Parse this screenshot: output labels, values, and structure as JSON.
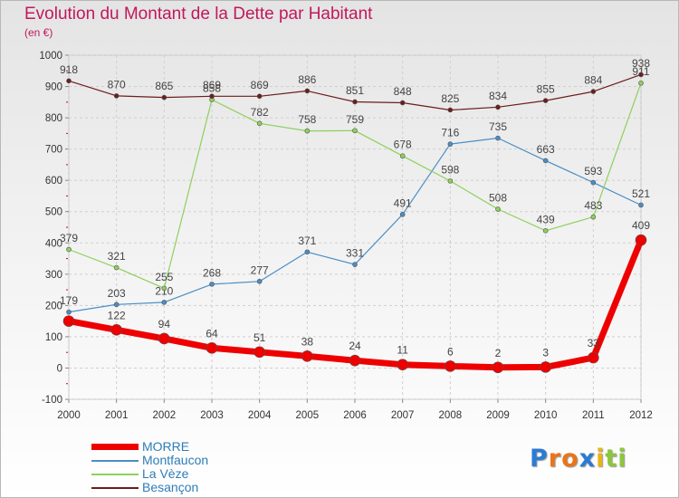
{
  "title": "Evolution du Montant de la Dette par Habitant",
  "unit": "(en €)",
  "logo": {
    "letters": [
      "P",
      "r",
      "o",
      "x",
      "i",
      "t",
      "i"
    ],
    "colors": [
      "#2b7bd4",
      "#e8751a",
      "#e8751a",
      "#2b7bd4",
      "#e8b218",
      "#8cc63f",
      "#8cc63f"
    ]
  },
  "chart_data": {
    "type": "line",
    "title": "Evolution du Montant de la Dette par Habitant",
    "ylabel": "(en €)",
    "x": [
      "2000",
      "2001",
      "2002",
      "2003",
      "2004",
      "2005",
      "2006",
      "2007",
      "2008",
      "2009",
      "2010",
      "2011",
      "2012"
    ],
    "ylim": [
      -100,
      1000
    ],
    "yticks": [
      "-100",
      "0",
      "100",
      "200",
      "300",
      "400",
      "500",
      "600",
      "700",
      "800",
      "900",
      "1000"
    ],
    "grid": "horizontal and vertical, dashed",
    "legend_position": "bottom-left",
    "series": [
      {
        "name": "Montfaucon",
        "color": "#4a8ec6",
        "width": 1.2,
        "marker": 5,
        "values": [
          179,
          203,
          210,
          268,
          277,
          371,
          331,
          491,
          716,
          735,
          663,
          593,
          521
        ],
        "labels": [
          "179",
          "203",
          "210",
          "268",
          "277",
          "371",
          "331",
          "491",
          "716",
          "735",
          "663",
          "593",
          "521"
        ]
      },
      {
        "name": "La Vèze",
        "color": "#8ed05c",
        "width": 1.2,
        "marker": 5,
        "values": [
          379,
          321,
          255,
          858,
          782,
          758,
          759,
          678,
          598,
          508,
          439,
          483,
          911
        ],
        "labels": [
          "379",
          "321",
          "255",
          "858",
          "782",
          "758",
          "759",
          "678",
          "598",
          "508",
          "439",
          "483",
          "911"
        ]
      },
      {
        "name": "Besançon",
        "color": "#6b1d1d",
        "width": 1.2,
        "marker": 5,
        "values": [
          918,
          870,
          865,
          869,
          869,
          886,
          851,
          848,
          825,
          834,
          855,
          884,
          938
        ],
        "labels": [
          "918",
          "870",
          "865",
          "869",
          "869",
          "886",
          "851",
          "848",
          "825",
          "834",
          "855",
          "884",
          "938"
        ]
      },
      {
        "name": "MORRE",
        "color": "#ee0000",
        "width": 7,
        "marker": 12,
        "values": [
          150,
          122,
          94,
          64,
          51,
          38,
          24,
          11,
          6,
          2,
          3,
          33,
          409
        ],
        "labels": [
          "",
          "122",
          "94",
          "64",
          "51",
          "38",
          "24",
          "11",
          "6",
          "2",
          "3",
          "33",
          "409"
        ]
      }
    ],
    "legend": [
      {
        "name": "MORRE",
        "color": "#ee0000",
        "thick": true
      },
      {
        "name": "Montfaucon",
        "color": "#4a8ec6",
        "thick": false
      },
      {
        "name": "La Vèze",
        "color": "#8ed05c",
        "thick": false
      },
      {
        "name": "Besançon",
        "color": "#6b1d1d",
        "thick": false
      }
    ]
  }
}
